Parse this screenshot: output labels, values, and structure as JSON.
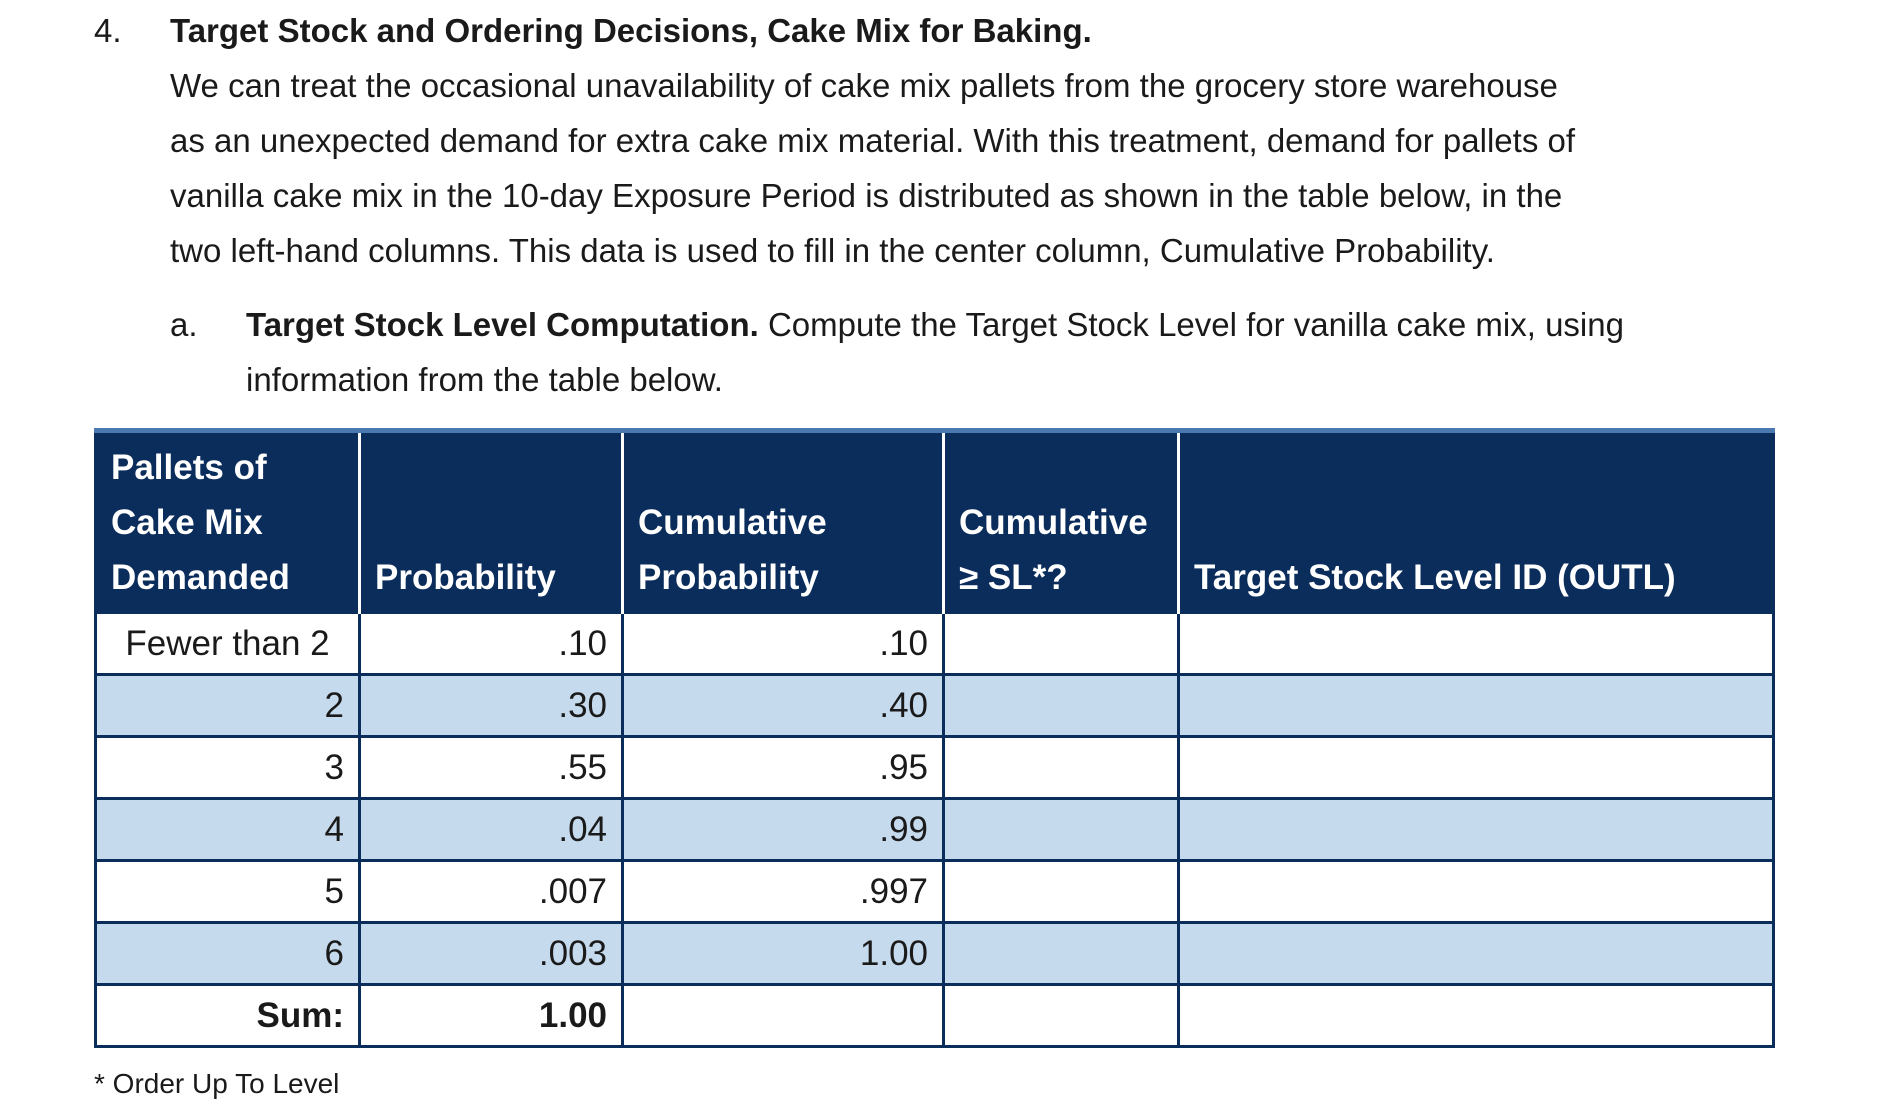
{
  "question": {
    "number": "4.",
    "title": "Target Stock and Ordering Decisions, Cake Mix for Baking.",
    "lines": [
      "We can treat the occasional unavailability of cake mix pallets from the grocery store warehouse",
      "as an unexpected demand for extra cake mix material. With this treatment, demand for pallets of",
      "vanilla cake mix in the 10-day Exposure Period is distributed as shown in the table below, in the",
      "two left-hand columns. This data is used to fill in the center column, Cumulative Probability."
    ]
  },
  "subquestion": {
    "label": "a.",
    "title": "Target Stock Level Computation.",
    "lines": [
      "Compute the Target Stock Level for vanilla cake mix, using",
      "information from the table below."
    ]
  },
  "table": {
    "headers": [
      [
        "Pallets of",
        "Cake Mix",
        "Demanded"
      ],
      [
        "Probability"
      ],
      [
        "Cumulative",
        "Probability"
      ],
      [
        "Cumulative",
        "≥ SL*?"
      ],
      [
        "Target Stock Level ID (OUTL)"
      ]
    ],
    "rows": [
      [
        "Fewer than 2",
        ".10",
        ".10"
      ],
      [
        "2",
        ".30",
        ".40"
      ],
      [
        "3",
        ".55",
        ".95"
      ],
      [
        "4",
        ".04",
        ".99"
      ],
      [
        "5",
        ".007",
        ".997"
      ],
      [
        "6",
        ".003",
        "1.00"
      ]
    ],
    "sum": [
      "Sum:",
      "1.00"
    ]
  },
  "footnote": "* Order Up To Level"
}
